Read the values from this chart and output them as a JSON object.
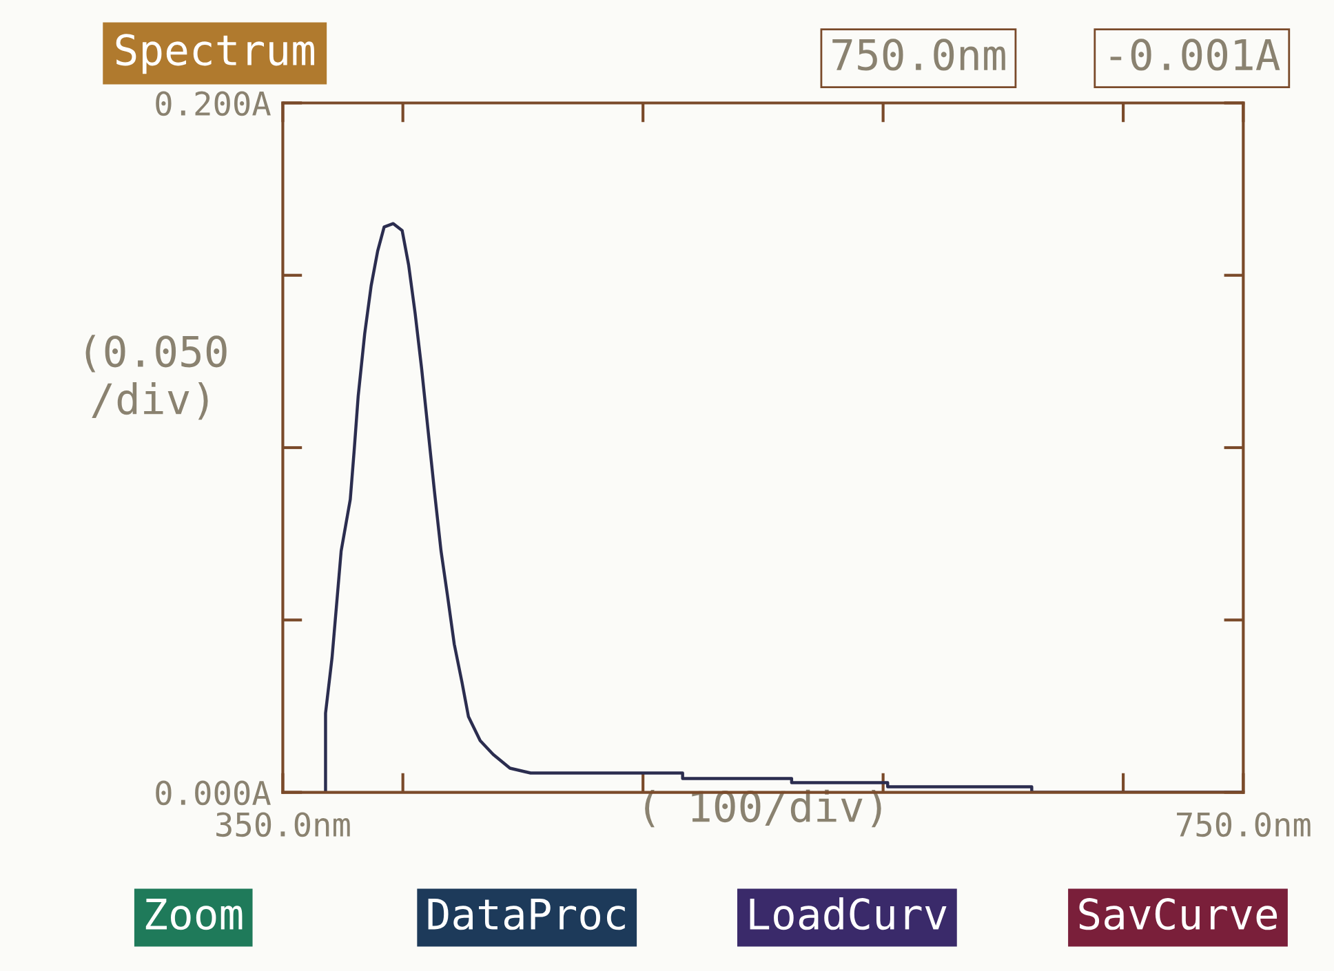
{
  "chart_data": {
    "type": "line",
    "title": "Spectrum",
    "xlabel": "( 100/div)",
    "ylabel": "(0.050\n/div)",
    "x": [
      367.8,
      367.8,
      370.5,
      374.3,
      378.1,
      379.7,
      381.4,
      384.1,
      386.8,
      389.5,
      392.2,
      396,
      399.7,
      402.4,
      405.1,
      407.8,
      410.5,
      413.2,
      415.9,
      418.6,
      421.4,
      424.6,
      427.3,
      432.2,
      437.6,
      444.6,
      453.2,
      516.5,
      516.5,
      561.9,
      561.9,
      601.9,
      601.9,
      661.9,
      661.9,
      750
    ],
    "series": [
      {
        "color": "#2b2d4f",
        "values": [
          0,
          0.023,
          0.039,
          0.07,
          0.085,
          0.099,
          0.115,
          0.133,
          0.147,
          0.157,
          0.164,
          0.165,
          0.163,
          0.153,
          0.139,
          0.123,
          0.105,
          0.087,
          0.07,
          0.057,
          0.043,
          0.032,
          0.022,
          0.015,
          0.011,
          0.007,
          0.0056,
          0.0056,
          0.004,
          0.004,
          0.0028,
          0.0028,
          0.0016,
          0.0016,
          0,
          0
        ]
      }
    ],
    "xlim": [
      350,
      750
    ],
    "xticks": [
      {
        "value": 350,
        "label": "350.0nm"
      },
      {
        "value": 400,
        "label": null
      },
      {
        "value": 500,
        "label": null
      },
      {
        "value": 600,
        "label": null
      },
      {
        "value": 700,
        "label": null
      },
      {
        "value": 750,
        "label": "750.0nm"
      }
    ],
    "ylim": [
      0,
      0.2
    ],
    "yticks": [
      {
        "value": 0,
        "label": "0.000A"
      },
      {
        "value": 0.05,
        "label": null
      },
      {
        "value": 0.1,
        "label": null
      },
      {
        "value": 0.15,
        "label": null
      },
      {
        "value": 0.2,
        "label": "0.200A"
      }
    ],
    "grid": false,
    "legend": false,
    "marker": "none",
    "line_style": "solid",
    "annotations": [
      "750.0nm",
      "-0.001A",
      "Zoom",
      "DataProc",
      "LoadCurv",
      "SavCurve"
    ]
  }
}
